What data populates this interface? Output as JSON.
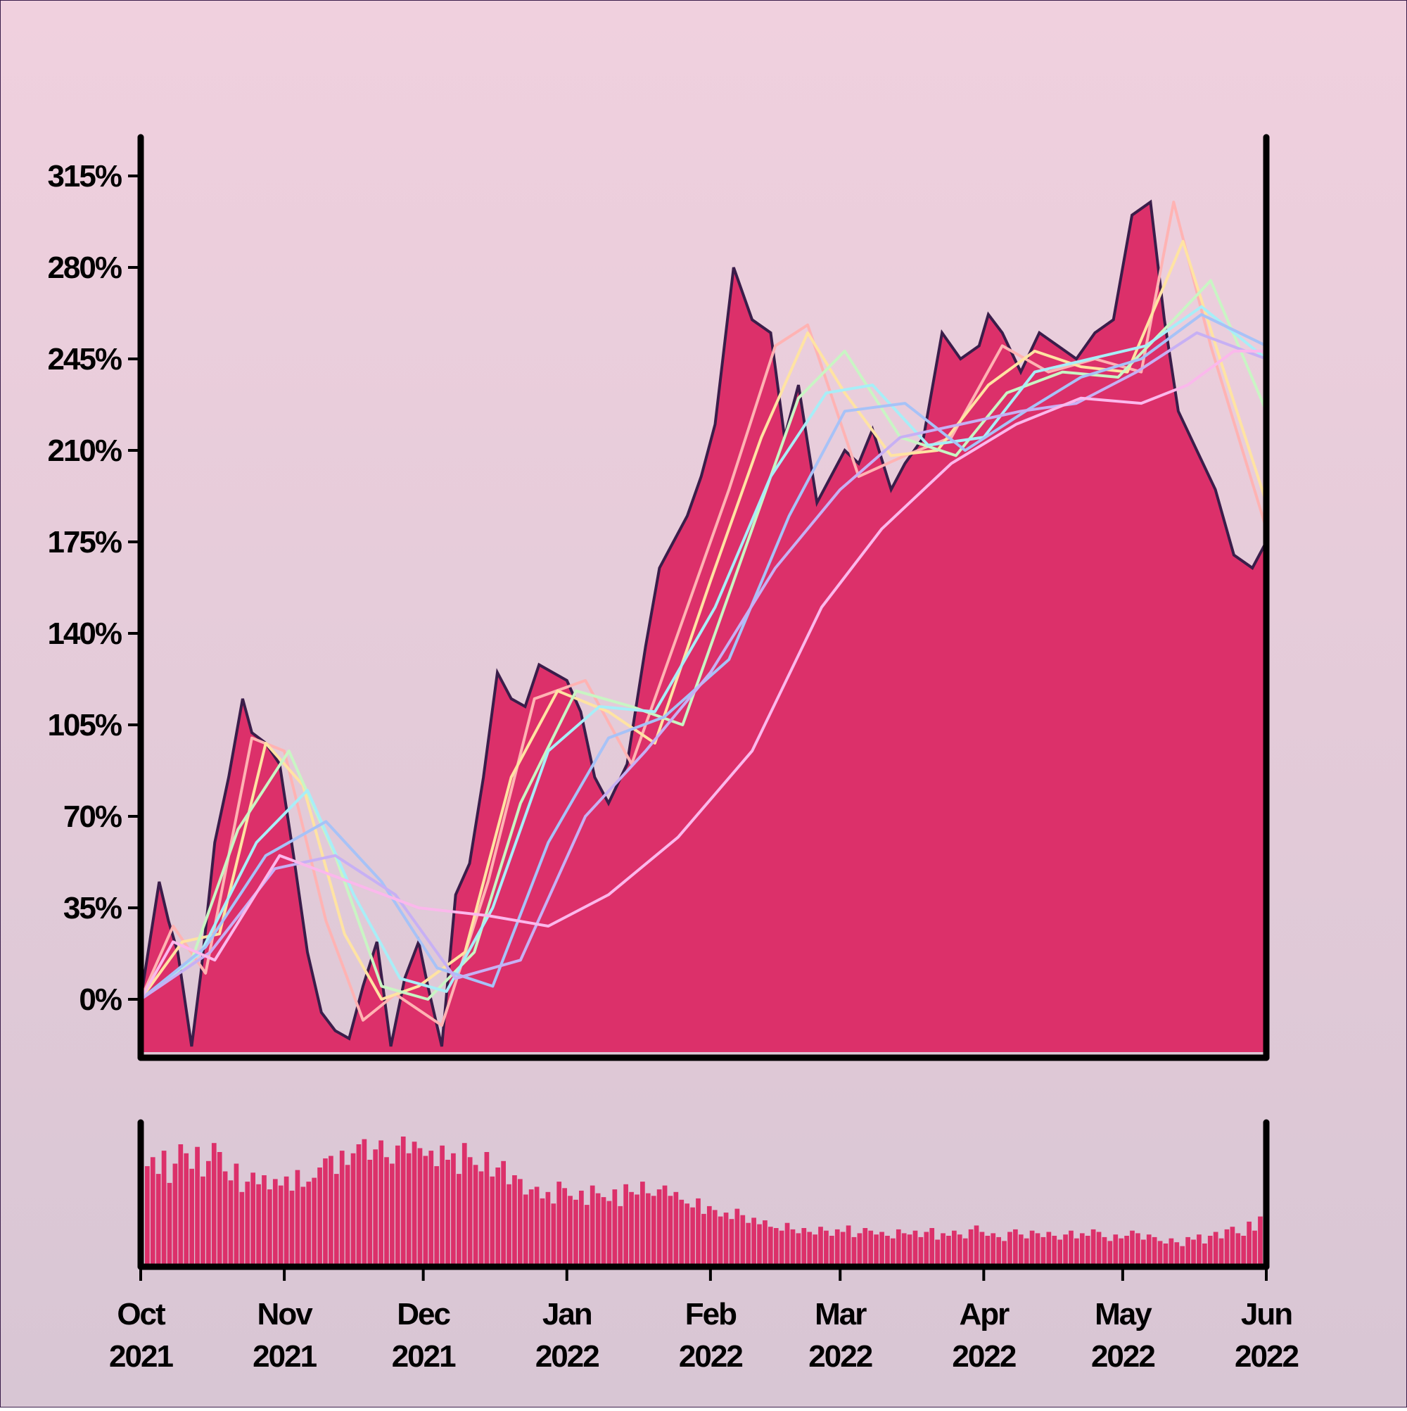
{
  "colors": {
    "background_top": "#f0d0de",
    "background_bottom": "#d8c6d4",
    "area_fill": "#dc306a",
    "area_outline": "#3a1d4a",
    "volume_fill": "#dc306a",
    "axis": "#000000"
  },
  "chart_data": {
    "type": "area",
    "panels": [
      "price-change",
      "volume"
    ],
    "x_range": [
      "2021-10-01",
      "2022-06-01"
    ],
    "x_ticks": [
      {
        "date": "2021-10-01",
        "month": "Oct",
        "year": "2021"
      },
      {
        "date": "2021-11-01",
        "month": "Nov",
        "year": "2021"
      },
      {
        "date": "2021-12-01",
        "month": "Dec",
        "year": "2021"
      },
      {
        "date": "2022-01-01",
        "month": "Jan",
        "year": "2022"
      },
      {
        "date": "2022-02-01",
        "month": "Feb",
        "year": "2022"
      },
      {
        "date": "2022-03-01",
        "month": "Mar",
        "year": "2022"
      },
      {
        "date": "2022-04-01",
        "month": "Apr",
        "year": "2022"
      },
      {
        "date": "2022-05-01",
        "month": "May",
        "year": "2022"
      },
      {
        "date": "2022-06-01",
        "month": "Jun",
        "year": "2022"
      }
    ],
    "y_ticks": [
      "0%",
      "35%",
      "70%",
      "105%",
      "140%",
      "175%",
      "210%",
      "245%",
      "280%",
      "315%"
    ],
    "y_tick_values": [
      0,
      35,
      70,
      105,
      140,
      175,
      210,
      245,
      280,
      315
    ],
    "y_range": [
      -20,
      330
    ],
    "grid": false,
    "price": {
      "x": [
        "2021-10-01",
        "2021-10-05",
        "2021-10-07",
        "2021-10-09",
        "2021-10-12",
        "2021-10-14",
        "2021-10-17",
        "2021-10-20",
        "2021-10-23",
        "2021-10-25",
        "2021-10-28",
        "2021-10-31",
        "2021-11-03",
        "2021-11-06",
        "2021-11-09",
        "2021-11-12",
        "2021-11-15",
        "2021-11-18",
        "2021-11-21",
        "2021-11-24",
        "2021-11-27",
        "2021-11-30",
        "2021-12-02",
        "2021-12-05",
        "2021-12-08",
        "2021-12-11",
        "2021-12-14",
        "2021-12-17",
        "2021-12-20",
        "2021-12-23",
        "2021-12-26",
        "2021-12-29",
        "2022-01-01",
        "2022-01-04",
        "2022-01-07",
        "2022-01-10",
        "2022-01-14",
        "2022-01-18",
        "2022-01-21",
        "2022-01-24",
        "2022-01-27",
        "2022-01-30",
        "2022-02-02",
        "2022-02-06",
        "2022-02-10",
        "2022-02-14",
        "2022-02-17",
        "2022-02-20",
        "2022-02-24",
        "2022-02-27",
        "2022-03-02",
        "2022-03-05",
        "2022-03-08",
        "2022-03-12",
        "2022-03-15",
        "2022-03-19",
        "2022-03-23",
        "2022-03-27",
        "2022-03-31",
        "2022-04-02",
        "2022-04-05",
        "2022-04-09",
        "2022-04-13",
        "2022-04-17",
        "2022-04-21",
        "2022-04-25",
        "2022-04-29",
        "2022-05-03",
        "2022-05-07",
        "2022-05-10",
        "2022-05-13",
        "2022-05-17",
        "2022-05-21",
        "2022-05-25",
        "2022-05-29",
        "2022-06-01"
      ],
      "values": [
        0,
        45,
        30,
        18,
        -18,
        10,
        60,
        85,
        115,
        102,
        98,
        90,
        55,
        18,
        -5,
        -12,
        -15,
        5,
        22,
        -18,
        8,
        22,
        5,
        -18,
        40,
        52,
        85,
        125,
        115,
        112,
        128,
        125,
        122,
        110,
        85,
        75,
        90,
        135,
        165,
        175,
        185,
        200,
        220,
        280,
        260,
        255,
        215,
        235,
        190,
        200,
        210,
        205,
        218,
        195,
        205,
        215,
        255,
        245,
        250,
        262,
        255,
        240,
        255,
        250,
        245,
        255,
        260,
        300,
        305,
        260,
        225,
        210,
        195,
        170,
        165,
        175
      ]
    },
    "moving_averages": [
      {
        "color": "#ffb3b3",
        "x": [
          "2021-10-01",
          "2021-10-08",
          "2021-10-15",
          "2021-10-25",
          "2021-11-01",
          "2021-11-10",
          "2021-11-18",
          "2021-11-25",
          "2021-12-05",
          "2021-12-15",
          "2021-12-25",
          "2022-01-05",
          "2022-01-15",
          "2022-01-25",
          "2022-02-05",
          "2022-02-15",
          "2022-02-22",
          "2022-03-05",
          "2022-03-15",
          "2022-03-25",
          "2022-04-05",
          "2022-04-15",
          "2022-04-25",
          "2022-05-05",
          "2022-05-12",
          "2022-05-20",
          "2022-06-01"
        ],
        "values": [
          0,
          28,
          10,
          100,
          95,
          30,
          -8,
          2,
          -10,
          45,
          115,
          122,
          90,
          140,
          195,
          250,
          258,
          200,
          208,
          215,
          250,
          240,
          245,
          240,
          305,
          250,
          180
        ]
      },
      {
        "color": "#ffe3a3",
        "x": [
          "2021-10-01",
          "2021-10-10",
          "2021-10-18",
          "2021-10-28",
          "2021-11-05",
          "2021-11-14",
          "2021-11-22",
          "2021-11-30",
          "2021-12-10",
          "2021-12-20",
          "2021-12-30",
          "2022-01-10",
          "2022-01-20",
          "2022-02-01",
          "2022-02-12",
          "2022-02-22",
          "2022-03-02",
          "2022-03-12",
          "2022-03-22",
          "2022-04-02",
          "2022-04-12",
          "2022-04-22",
          "2022-05-02",
          "2022-05-14",
          "2022-05-22",
          "2022-06-01"
        ],
        "values": [
          0,
          22,
          25,
          98,
          82,
          25,
          0,
          5,
          18,
          85,
          118,
          110,
          98,
          160,
          215,
          255,
          232,
          208,
          210,
          235,
          248,
          242,
          240,
          290,
          245,
          190
        ]
      },
      {
        "color": "#c9f5c4",
        "x": [
          "2021-10-01",
          "2021-10-12",
          "2021-10-22",
          "2021-11-02",
          "2021-11-12",
          "2021-11-22",
          "2021-12-02",
          "2021-12-12",
          "2021-12-22",
          "2022-01-03",
          "2022-01-15",
          "2022-01-26",
          "2022-02-08",
          "2022-02-20",
          "2022-03-02",
          "2022-03-14",
          "2022-03-26",
          "2022-04-06",
          "2022-04-18",
          "2022-04-30",
          "2022-05-12",
          "2022-05-20",
          "2022-06-01"
        ],
        "values": [
          0,
          15,
          65,
          95,
          55,
          5,
          0,
          18,
          75,
          118,
          112,
          105,
          170,
          230,
          248,
          215,
          208,
          232,
          240,
          238,
          260,
          275,
          225
        ]
      },
      {
        "color": "#a8eef7",
        "x": [
          "2021-10-01",
          "2021-10-14",
          "2021-10-26",
          "2021-11-06",
          "2021-11-16",
          "2021-11-26",
          "2021-12-06",
          "2021-12-16",
          "2021-12-28",
          "2022-01-08",
          "2022-01-20",
          "2022-02-02",
          "2022-02-14",
          "2022-02-26",
          "2022-03-08",
          "2022-03-20",
          "2022-04-01",
          "2022-04-12",
          "2022-04-24",
          "2022-05-06",
          "2022-05-18",
          "2022-06-01"
        ],
        "values": [
          0,
          18,
          60,
          80,
          40,
          8,
          3,
          35,
          95,
          112,
          110,
          150,
          200,
          232,
          235,
          212,
          215,
          240,
          245,
          250,
          265,
          245
        ]
      },
      {
        "color": "#a7c2f7",
        "x": [
          "2021-10-01",
          "2021-10-15",
          "2021-10-28",
          "2021-11-10",
          "2021-11-22",
          "2021-12-04",
          "2021-12-16",
          "2021-12-28",
          "2022-01-10",
          "2022-01-22",
          "2022-02-05",
          "2022-02-18",
          "2022-03-02",
          "2022-03-15",
          "2022-03-28",
          "2022-04-10",
          "2022-04-22",
          "2022-05-05",
          "2022-05-18",
          "2022-06-01"
        ],
        "values": [
          0,
          20,
          55,
          68,
          45,
          12,
          5,
          60,
          100,
          108,
          130,
          185,
          225,
          228,
          210,
          225,
          238,
          245,
          262,
          250
        ]
      },
      {
        "color": "#c7b0f4",
        "x": [
          "2021-10-01",
          "2021-10-16",
          "2021-10-30",
          "2021-11-12",
          "2021-11-25",
          "2021-12-08",
          "2021-12-22",
          "2022-01-05",
          "2022-01-18",
          "2022-02-01",
          "2022-02-15",
          "2022-03-01",
          "2022-03-14",
          "2022-03-27",
          "2022-04-09",
          "2022-04-21",
          "2022-05-04",
          "2022-05-17",
          "2022-06-01"
        ],
        "values": [
          0,
          18,
          50,
          55,
          40,
          8,
          15,
          70,
          95,
          125,
          165,
          195,
          215,
          220,
          225,
          228,
          240,
          255,
          245
        ]
      },
      {
        "color": "#fbb8ec",
        "x": [
          "2021-10-01",
          "2021-10-08",
          "2021-10-17",
          "2021-10-31",
          "2021-11-15",
          "2021-11-30",
          "2021-12-15",
          "2021-12-28",
          "2022-01-10",
          "2022-01-25",
          "2022-02-10",
          "2022-02-25",
          "2022-03-10",
          "2022-03-25",
          "2022-04-08",
          "2022-04-22",
          "2022-05-05",
          "2022-05-15",
          "2022-05-25",
          "2022-06-01"
        ],
        "values": [
          0,
          22,
          15,
          55,
          45,
          35,
          32,
          28,
          40,
          62,
          95,
          150,
          180,
          205,
          220,
          230,
          228,
          235,
          248,
          248
        ]
      }
    ],
    "volume": {
      "values": [
        78,
        85,
        72,
        90,
        65,
        80,
        95,
        88,
        76,
        93,
        70,
        82,
        96,
        89,
        74,
        67,
        80,
        58,
        66,
        73,
        64,
        71,
        60,
        68,
        63,
        70,
        59,
        75,
        62,
        66,
        69,
        77,
        84,
        86,
        72,
        90,
        79,
        88,
        95,
        99,
        83,
        91,
        98,
        85,
        80,
        94,
        101,
        88,
        97,
        92,
        86,
        90,
        78,
        94,
        83,
        88,
        72,
        96,
        85,
        79,
        74,
        89,
        70,
        77,
        82,
        64,
        71,
        68,
        56,
        60,
        62,
        53,
        58,
        49,
        66,
        61,
        55,
        52,
        59,
        48,
        63,
        57,
        54,
        51,
        60,
        47,
        64,
        58,
        56,
        66,
        57,
        55,
        60,
        63,
        55,
        58,
        52,
        49,
        46,
        53,
        41,
        47,
        44,
        39,
        42,
        37,
        45,
        40,
        34,
        38,
        33,
        36,
        31,
        30,
        28,
        34,
        29,
        26,
        30,
        27,
        25,
        31,
        28,
        24,
        29,
        27,
        32,
        23,
        26,
        30,
        28,
        25,
        27,
        24,
        22,
        29,
        26,
        25,
        28,
        23,
        27,
        30,
        21,
        26,
        24,
        28,
        25,
        22,
        29,
        32,
        27,
        24,
        26,
        23,
        20,
        27,
        29,
        25,
        22,
        28,
        26,
        23,
        27,
        24,
        21,
        25,
        28,
        22,
        26,
        24,
        29,
        27,
        23,
        20,
        25,
        22,
        24,
        28,
        26,
        21,
        25,
        23,
        20,
        18,
        22,
        19,
        16,
        23,
        21,
        25,
        18,
        24,
        27,
        22,
        29,
        31,
        26,
        24,
        35,
        28,
        39
      ]
    }
  }
}
